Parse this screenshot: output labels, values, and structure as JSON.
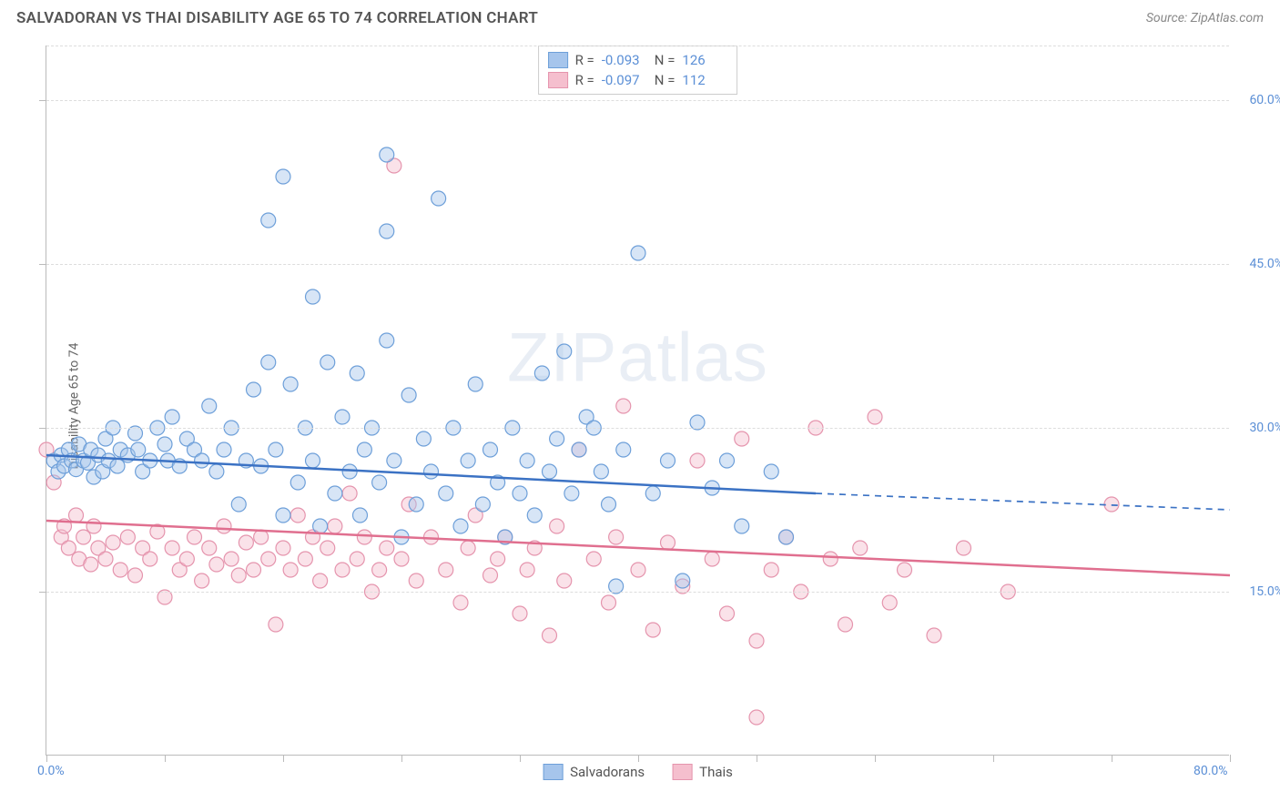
{
  "header": {
    "title": "SALVADORAN VS THAI DISABILITY AGE 65 TO 74 CORRELATION CHART",
    "source": "Source: ZipAtlas.com"
  },
  "ylabel": "Disability Age 65 to 74",
  "watermark": "ZIPatlas",
  "chart": {
    "type": "scatter",
    "xlim": [
      0,
      80
    ],
    "ylim": [
      0,
      65
    ],
    "x_ticks": [
      0,
      8,
      16,
      24,
      32,
      40,
      48,
      56,
      64,
      72,
      80
    ],
    "x_labels": [
      {
        "v": 0,
        "t": "0.0%"
      },
      {
        "v": 80,
        "t": "80.0%"
      }
    ],
    "y_labels": [
      {
        "v": 15,
        "t": "15.0%"
      },
      {
        "v": 30,
        "t": "30.0%"
      },
      {
        "v": 45,
        "t": "45.0%"
      },
      {
        "v": 60,
        "t": "60.0%"
      }
    ],
    "grid_lines_y": [
      15,
      30,
      45,
      60,
      65
    ],
    "background_color": "#ffffff",
    "grid_color": "#dddddd",
    "marker_radius": 8,
    "marker_opacity": 0.45,
    "line_width": 2.5
  },
  "series": [
    {
      "name": "Salvadorans",
      "fill_color": "#a6c5ec",
      "stroke_color": "#6d9fd9",
      "line_color": "#3b72c4",
      "R": "-0.093",
      "N": "126",
      "trend": {
        "x1": 0,
        "y1": 27.5,
        "x2": 52,
        "y2": 24.0,
        "x2_dash": 80,
        "y2_dash": 22.5
      },
      "points": [
        [
          0.5,
          27
        ],
        [
          0.8,
          26
        ],
        [
          1,
          27.5
        ],
        [
          1.2,
          26.5
        ],
        [
          1.5,
          28
        ],
        [
          1.7,
          27
        ],
        [
          2,
          26.2
        ],
        [
          2.2,
          28.5
        ],
        [
          2.5,
          27
        ],
        [
          2.8,
          26.8
        ],
        [
          3,
          28
        ],
        [
          3.2,
          25.5
        ],
        [
          3.5,
          27.5
        ],
        [
          3.8,
          26
        ],
        [
          4,
          29
        ],
        [
          4.2,
          27
        ],
        [
          4.5,
          30
        ],
        [
          4.8,
          26.5
        ],
        [
          5,
          28
        ],
        [
          5.5,
          27.5
        ],
        [
          6,
          29.5
        ],
        [
          6.2,
          28
        ],
        [
          6.5,
          26
        ],
        [
          7,
          27
        ],
        [
          7.5,
          30
        ],
        [
          8,
          28.5
        ],
        [
          8.2,
          27
        ],
        [
          8.5,
          31
        ],
        [
          9,
          26.5
        ],
        [
          9.5,
          29
        ],
        [
          10,
          28
        ],
        [
          10.5,
          27
        ],
        [
          11,
          32
        ],
        [
          11.5,
          26
        ],
        [
          12,
          28
        ],
        [
          12.5,
          30
        ],
        [
          13,
          23
        ],
        [
          13.5,
          27
        ],
        [
          14,
          33.5
        ],
        [
          14.5,
          26.5
        ],
        [
          15,
          36
        ],
        [
          15,
          49
        ],
        [
          15.5,
          28
        ],
        [
          16,
          22
        ],
        [
          16,
          53
        ],
        [
          16.5,
          34
        ],
        [
          17,
          25
        ],
        [
          17.5,
          30
        ],
        [
          18,
          42
        ],
        [
          18,
          27
        ],
        [
          18.5,
          21
        ],
        [
          19,
          36
        ],
        [
          19.5,
          24
        ],
        [
          20,
          31
        ],
        [
          20.5,
          26
        ],
        [
          21,
          35
        ],
        [
          21.2,
          22
        ],
        [
          21.5,
          28
        ],
        [
          22,
          30
        ],
        [
          22.5,
          25
        ],
        [
          23,
          38
        ],
        [
          23,
          48
        ],
        [
          23,
          55
        ],
        [
          23.5,
          27
        ],
        [
          24,
          20
        ],
        [
          24.5,
          33
        ],
        [
          25,
          23
        ],
        [
          25.5,
          29
        ],
        [
          26,
          26
        ],
        [
          26.5,
          51
        ],
        [
          27,
          24
        ],
        [
          27.5,
          30
        ],
        [
          28,
          21
        ],
        [
          28.5,
          27
        ],
        [
          29,
          34
        ],
        [
          29.5,
          23
        ],
        [
          30,
          28
        ],
        [
          30.5,
          25
        ],
        [
          31,
          20
        ],
        [
          31.5,
          30
        ],
        [
          32,
          24
        ],
        [
          32.5,
          27
        ],
        [
          33,
          22
        ],
        [
          33.5,
          35
        ],
        [
          34,
          26
        ],
        [
          34.5,
          29
        ],
        [
          35,
          37
        ],
        [
          35.5,
          24
        ],
        [
          36,
          28
        ],
        [
          36.5,
          31
        ],
        [
          37,
          30
        ],
        [
          37.5,
          26
        ],
        [
          38,
          23
        ],
        [
          38.5,
          15.5
        ],
        [
          39,
          28
        ],
        [
          40,
          46
        ],
        [
          41,
          24
        ],
        [
          42,
          27
        ],
        [
          43,
          16
        ],
        [
          44,
          30.5
        ],
        [
          45,
          24.5
        ],
        [
          46,
          27
        ],
        [
          47,
          21
        ],
        [
          49,
          26
        ],
        [
          50,
          20
        ]
      ]
    },
    {
      "name": "Thais",
      "fill_color": "#f5bfce",
      "stroke_color": "#e594ad",
      "line_color": "#e06f8f",
      "R": "-0.097",
      "N": "112",
      "trend": {
        "x1": 0,
        "y1": 21.5,
        "x2": 80,
        "y2": 16.5
      },
      "points": [
        [
          0,
          28
        ],
        [
          0.5,
          25
        ],
        [
          1,
          20
        ],
        [
          1.2,
          21
        ],
        [
          1.5,
          19
        ],
        [
          2,
          22
        ],
        [
          2.2,
          18
        ],
        [
          2.5,
          20
        ],
        [
          3,
          17.5
        ],
        [
          3.2,
          21
        ],
        [
          3.5,
          19
        ],
        [
          4,
          18
        ],
        [
          4.5,
          19.5
        ],
        [
          5,
          17
        ],
        [
          5.5,
          20
        ],
        [
          6,
          16.5
        ],
        [
          6.5,
          19
        ],
        [
          7,
          18
        ],
        [
          7.5,
          20.5
        ],
        [
          8,
          14.5
        ],
        [
          8.5,
          19
        ],
        [
          9,
          17
        ],
        [
          9.5,
          18
        ],
        [
          10,
          20
        ],
        [
          10.5,
          16
        ],
        [
          11,
          19
        ],
        [
          11.5,
          17.5
        ],
        [
          12,
          21
        ],
        [
          12.5,
          18
        ],
        [
          13,
          16.5
        ],
        [
          13.5,
          19.5
        ],
        [
          14,
          17
        ],
        [
          14.5,
          20
        ],
        [
          15,
          18
        ],
        [
          15.5,
          12
        ],
        [
          16,
          19
        ],
        [
          16.5,
          17
        ],
        [
          17,
          22
        ],
        [
          17.5,
          18
        ],
        [
          18,
          20
        ],
        [
          18.5,
          16
        ],
        [
          19,
          19
        ],
        [
          19.5,
          21
        ],
        [
          20,
          17
        ],
        [
          20.5,
          24
        ],
        [
          21,
          18
        ],
        [
          21.5,
          20
        ],
        [
          22,
          15
        ],
        [
          22.5,
          17
        ],
        [
          23,
          19
        ],
        [
          23.5,
          54
        ],
        [
          24,
          18
        ],
        [
          24.5,
          23
        ],
        [
          25,
          16
        ],
        [
          26,
          20
        ],
        [
          27,
          17
        ],
        [
          28,
          14
        ],
        [
          28.5,
          19
        ],
        [
          29,
          22
        ],
        [
          30,
          16.5
        ],
        [
          30.5,
          18
        ],
        [
          31,
          20
        ],
        [
          32,
          13
        ],
        [
          32.5,
          17
        ],
        [
          33,
          19
        ],
        [
          34,
          11
        ],
        [
          34.5,
          21
        ],
        [
          35,
          16
        ],
        [
          36,
          28
        ],
        [
          37,
          18
        ],
        [
          38,
          14
        ],
        [
          38.5,
          20
        ],
        [
          39,
          32
        ],
        [
          40,
          17
        ],
        [
          41,
          11.5
        ],
        [
          42,
          19.5
        ],
        [
          43,
          15.5
        ],
        [
          44,
          27
        ],
        [
          45,
          18
        ],
        [
          46,
          13
        ],
        [
          47,
          29
        ],
        [
          48,
          10.5
        ],
        [
          49,
          17
        ],
        [
          50,
          20
        ],
        [
          51,
          15
        ],
        [
          52,
          30
        ],
        [
          53,
          18
        ],
        [
          54,
          12
        ],
        [
          55,
          19
        ],
        [
          56,
          31
        ],
        [
          57,
          14
        ],
        [
          58,
          17
        ],
        [
          60,
          11
        ],
        [
          62,
          19
        ],
        [
          65,
          15
        ],
        [
          72,
          23
        ],
        [
          48,
          3.5
        ]
      ]
    }
  ],
  "legend": {
    "items": [
      "Salvadorans",
      "Thais"
    ]
  }
}
